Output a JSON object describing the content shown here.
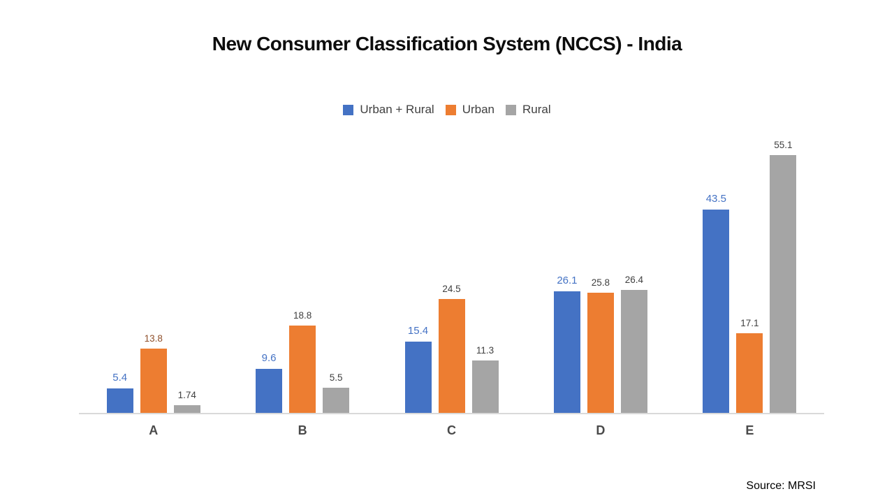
{
  "title": "New Consumer Classification System (NCCS) - India",
  "source": "Source: MRSI",
  "legend": [
    {
      "label": "Urban + Rural",
      "color": "#4472C4"
    },
    {
      "label": "Urban",
      "color": "#ED7D31"
    },
    {
      "label": "Rural",
      "color": "#A5A5A5"
    }
  ],
  "colors": {
    "axis_line": "#D9D9D9",
    "default_value_label": "#404040",
    "category_label": "#4A4A4A"
  },
  "chart_data": {
    "type": "bar",
    "title": "New Consumer Classification System (NCCS) - India",
    "xlabel": "",
    "ylabel": "",
    "categories": [
      "A",
      "B",
      "C",
      "D",
      "E"
    ],
    "series": [
      {
        "name": "Urban + Rural",
        "color": "#4472C4",
        "values": [
          5.4,
          9.6,
          15.4,
          26.1,
          43.5
        ],
        "labels": [
          "5.4",
          "9.6",
          "15.4",
          "26.1",
          "43.5"
        ],
        "label_color": "#4472C4"
      },
      {
        "name": "Urban",
        "color": "#ED7D31",
        "values": [
          13.8,
          18.8,
          24.5,
          25.8,
          17.1
        ],
        "labels": [
          "13.8",
          "18.8",
          "24.5",
          "25.8",
          "17.1"
        ],
        "label_color": "#404040",
        "label_color_overrides": {
          "0": "#8F4F2A"
        }
      },
      {
        "name": "Rural",
        "color": "#A5A5A5",
        "values": [
          1.74,
          5.5,
          11.3,
          26.4,
          55.1
        ],
        "labels": [
          "1.74",
          "5.5",
          "11.3",
          "26.4",
          "55.1"
        ],
        "label_color": "#404040"
      }
    ],
    "ylim": [
      0,
      55.1
    ],
    "grid": false,
    "y_axis_visible": false,
    "legend_position": "top",
    "data_labels": true
  }
}
